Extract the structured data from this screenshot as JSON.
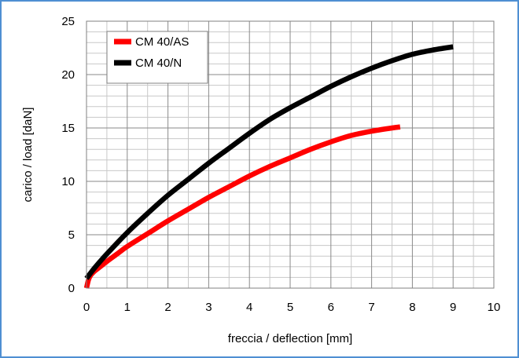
{
  "chart_data": {
    "type": "line",
    "title": "",
    "xlabel": "freccia / deflection [mm]",
    "ylabel": "carico / load [daN]",
    "xlim": [
      0,
      10
    ],
    "ylim": [
      0,
      25
    ],
    "x_major_ticks": [
      0,
      1,
      2,
      3,
      4,
      5,
      6,
      7,
      8,
      9,
      10
    ],
    "y_major_ticks": [
      0,
      5,
      10,
      15,
      20,
      25
    ],
    "x_minor_step": 0.5,
    "y_minor_step": 1,
    "grid": true,
    "legend_position": "top-left",
    "series": [
      {
        "name": "CM 40/AS",
        "color": "#ff0000",
        "x": [
          0.0,
          0.05,
          0.1,
          0.2,
          0.3,
          0.5,
          0.75,
          1.0,
          1.5,
          2.0,
          2.5,
          3.0,
          3.5,
          4.0,
          4.5,
          5.0,
          5.5,
          6.0,
          6.5,
          7.0,
          7.5,
          7.7
        ],
        "y": [
          0.0,
          0.8,
          1.2,
          1.6,
          1.9,
          2.5,
          3.2,
          3.9,
          5.1,
          6.3,
          7.4,
          8.5,
          9.5,
          10.5,
          11.4,
          12.2,
          13.0,
          13.7,
          14.3,
          14.7,
          15.0,
          15.1
        ]
      },
      {
        "name": "CM 40/N",
        "color": "#000000",
        "x": [
          0.0,
          0.2,
          0.5,
          1.0,
          1.5,
          2.0,
          2.5,
          3.0,
          3.5,
          4.0,
          4.5,
          5.0,
          5.5,
          6.0,
          6.5,
          7.0,
          7.5,
          8.0,
          8.5,
          9.0
        ],
        "y": [
          0.9,
          1.9,
          3.2,
          5.2,
          7.0,
          8.7,
          10.2,
          11.7,
          13.1,
          14.5,
          15.8,
          16.9,
          17.9,
          18.9,
          19.8,
          20.6,
          21.3,
          21.9,
          22.3,
          22.6
        ]
      }
    ]
  }
}
